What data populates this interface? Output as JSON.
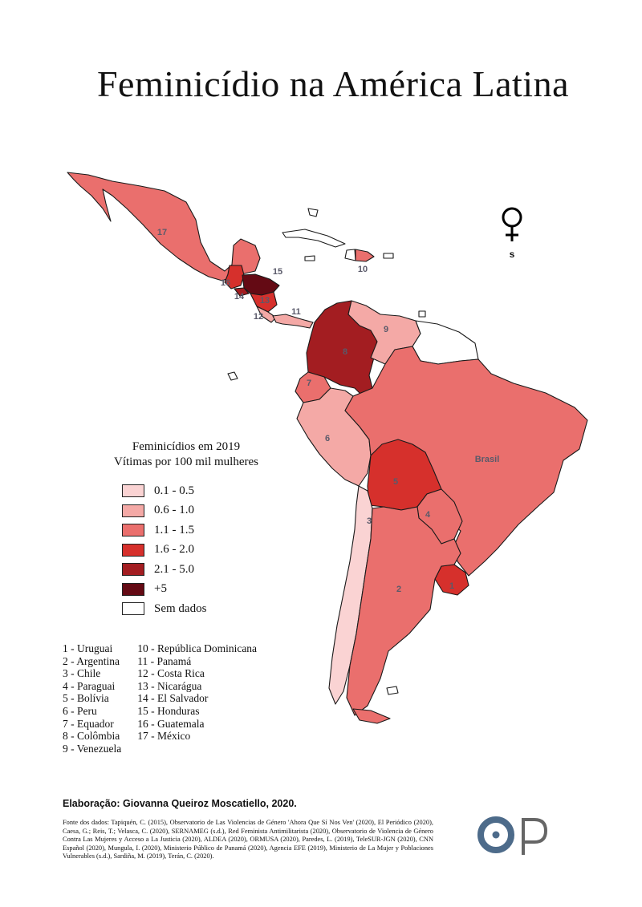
{
  "title": "Feminicídio na América Latina",
  "symbol": {
    "icon": "venus-icon",
    "letter": "s"
  },
  "legend": {
    "title_line1": "Feminicídios em 2019",
    "title_line2": "Vítimas por 100 mil mulheres",
    "items": [
      {
        "label": "0.1 - 0.5",
        "color": "#fad3d3"
      },
      {
        "label": "0.6 - 1.0",
        "color": "#f4a9a6"
      },
      {
        "label": "1.1 - 1.5",
        "color": "#ea6f6d"
      },
      {
        "label": "1.6 - 2.0",
        "color": "#d6302c"
      },
      {
        "label": "2.1 - 5.0",
        "color": "#a31d21"
      },
      {
        "label": "+5",
        "color": "#640a14"
      },
      {
        "label": "Sem dados",
        "color": "#ffffff"
      }
    ]
  },
  "map_labels": {
    "uruguay": "1",
    "argentina": "2",
    "chile": "3",
    "paraguay": "4",
    "bolivia": "5",
    "peru": "6",
    "ecuador": "7",
    "colombia": "8",
    "venezuela": "9",
    "dominican": "10",
    "panama": "11",
    "costa_rica": "12",
    "nicaragua": "13",
    "el_salvador": "14",
    "honduras": "15",
    "guatemala": "16",
    "mexico": "17",
    "brazil": "Brasil"
  },
  "country_list": {
    "col1": [
      "1 - Uruguai",
      "2 - Argentina",
      "3 - Chile",
      "4 - Paraguai",
      "5 - Bolívia",
      "6 - Peru",
      "7 - Equador",
      "8 - Colômbia",
      "9 - Venezuela"
    ],
    "col2": [
      "10 - República Dominicana",
      "11 - Panamá",
      "12 - Costa Rica",
      "13 - Nicarágua",
      "14 - El Salvador",
      "15 - Honduras",
      "16 - Guatemala",
      "17 - México"
    ]
  },
  "credit": "Elaboração: Giovanna Queiroz Moscatiello, 2020.",
  "sources": "Fonte dos dados: Tapiquén, C. (2015), Observatorio de Las Violencias de Género 'Ahora Que Sí Nos Ven' (2020), El Periódico (2020), Caesa, G.; Reis, T.; Velasca, C. (2020), SERNAMEG (s.d.), Red Feminista Antimilitarista (2020), Observatorio de Violencia de Género Contra Las Mujeres y Acceso a La Justicia (2020), ALDEA (2020), ORMUSA (2020), Paredes, L. (2019), TeleSUR-JGN (2020), CNN Español (2020), Mungula, I. (2020), Ministerio Público de Panamá (2020), Agencia EFE (2019), Ministerio de La Mujer y Poblaciones Vulnerables (s.d.), Sardiña, M. (2019), Terán, C. (2020).",
  "logo": {
    "letters": "OP",
    "colors": {
      "ring": "#4d6b8a",
      "p": "#666666"
    }
  },
  "colors": {
    "no_data": "#ffffff",
    "outline": "#1a1a1a"
  }
}
